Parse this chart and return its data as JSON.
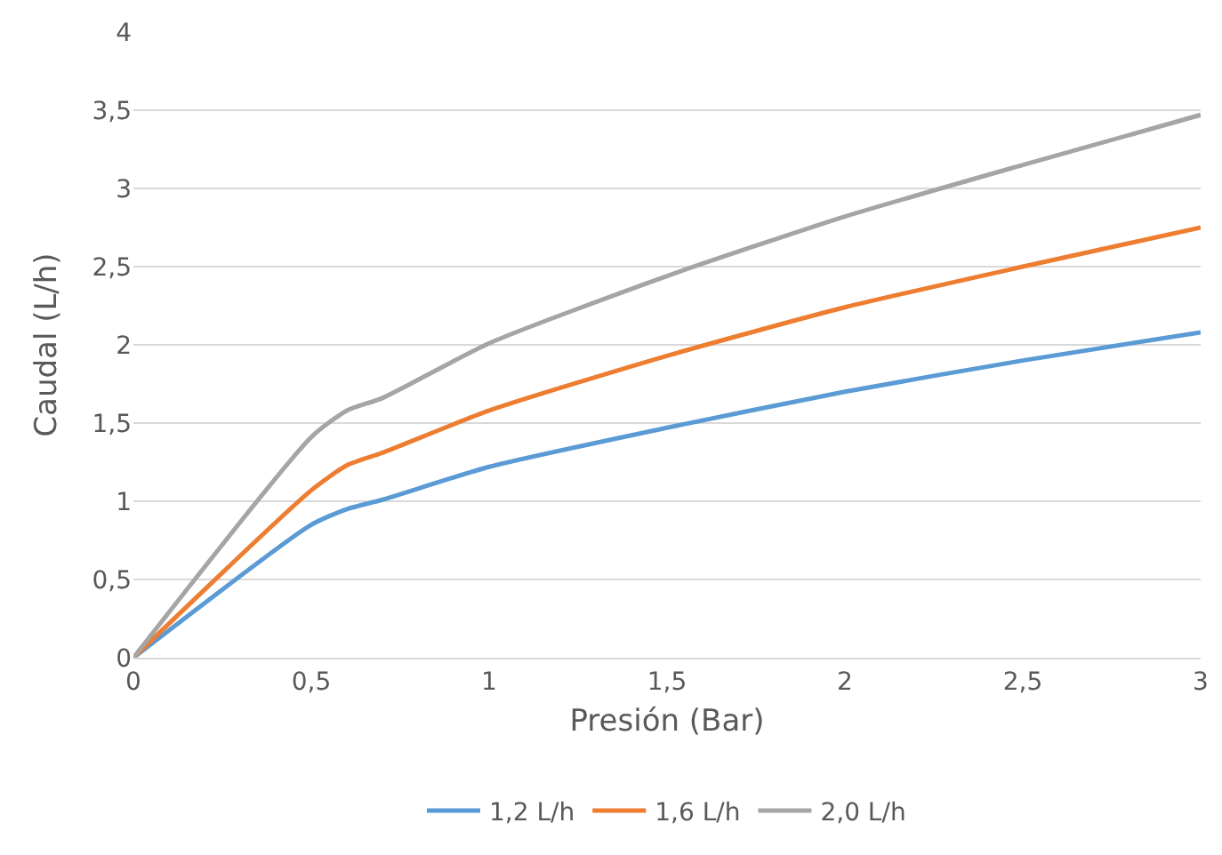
{
  "chart_data": {
    "type": "line",
    "xlabel": "Presión (Bar)",
    "ylabel": "Caudal (L/h)",
    "x": [
      0,
      0.5,
      0.6,
      0.7,
      1,
      1.5,
      2,
      2.5,
      3
    ],
    "series": [
      {
        "name": "1,2 L/h",
        "color": "#5b9bd5",
        "values": [
          0,
          0.85,
          0.95,
          1.01,
          1.22,
          1.47,
          1.7,
          1.9,
          2.08
        ]
      },
      {
        "name": "1,6 L/h",
        "color": "#ed7d31",
        "values": [
          0,
          1.07,
          1.23,
          1.31,
          1.58,
          1.93,
          2.24,
          2.5,
          2.75
        ]
      },
      {
        "name": "2,0 L/h",
        "color": "#a5a5a5",
        "values": [
          0,
          1.41,
          1.58,
          1.66,
          2.01,
          2.44,
          2.82,
          3.15,
          3.47
        ]
      }
    ],
    "xlim": [
      0,
      3
    ],
    "xticks": [
      0,
      {
        "value": 0.5,
        "label": "0,5"
      },
      1,
      {
        "value": 1.5,
        "label": "1,5"
      },
      2,
      {
        "value": 2.5,
        "label": "2,5"
      },
      3
    ],
    "ylim": [
      0,
      4
    ],
    "yticks": [
      0,
      {
        "value": 0.5,
        "label": "0,5"
      },
      1,
      {
        "value": 1.5,
        "label": "1,5"
      },
      2,
      {
        "value": 2.5,
        "label": "2,5"
      },
      3,
      {
        "value": 3.5,
        "label": "3,5"
      },
      4
    ],
    "grid": "y",
    "legend": "bottom",
    "marker": "none",
    "line_style": "solid"
  }
}
